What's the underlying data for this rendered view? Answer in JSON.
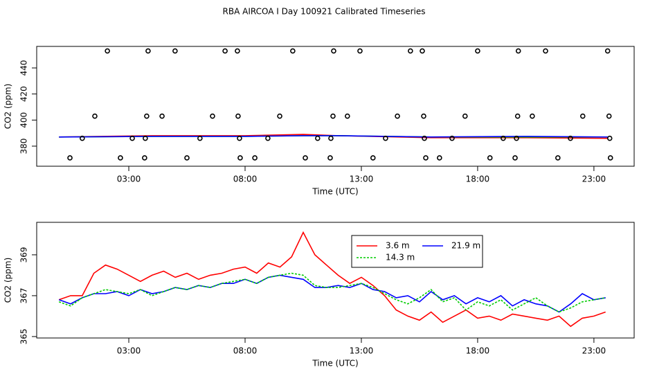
{
  "title": "RBA AIRCOA I  Day 100921  Calibrated Timeseries",
  "chart_data": [
    {
      "type": "line",
      "xlabel": "Time (UTC)",
      "ylabel": "CO2 (ppm)",
      "xlim": [
        -0.96,
        24.73
      ],
      "ylim": [
        364.6,
        456.5
      ],
      "xticks": [
        {
          "value": 3,
          "label": "03:00"
        },
        {
          "value": 8,
          "label": "08:00"
        },
        {
          "value": 13,
          "label": "13:00"
        },
        {
          "value": 18,
          "label": "18:00"
        },
        {
          "value": 23,
          "label": "23:00"
        }
      ],
      "yticks": [
        380,
        400,
        420,
        440
      ],
      "series": [
        {
          "type": "line",
          "color": "#ff0000",
          "x": [
            0,
            4,
            8,
            10.5,
            12,
            16,
            20,
            23.6
          ],
          "values": [
            387,
            388,
            388,
            389,
            388,
            386.5,
            386.5,
            386
          ]
        },
        {
          "type": "line",
          "color": "#00cc00",
          "x": [
            0,
            4,
            8,
            10.5,
            12,
            16,
            20,
            23.6
          ],
          "values": [
            387,
            387.5,
            387.5,
            388,
            388,
            387,
            387,
            387
          ]
        },
        {
          "type": "line",
          "color": "#0000ff",
          "x": [
            0,
            4,
            8,
            10.5,
            12,
            16,
            20,
            23.6
          ],
          "values": [
            387,
            387.5,
            387.5,
            388,
            388,
            387,
            387.5,
            387
          ]
        },
        {
          "type": "scatter",
          "color": "#000000",
          "x": [
            2.08,
            3.83,
            4.99,
            7.14,
            7.67,
            10.05,
            11.81,
            12.94,
            15.11,
            15.62,
            18.0,
            19.75,
            20.92,
            23.59,
            1.54,
            3.77,
            4.43,
            6.6,
            7.7,
            9.49,
            11.78,
            12.4,
            14.55,
            15.68,
            17.46,
            19.72,
            20.35,
            22.52,
            23.65,
            1.0,
            3.15,
            3.71,
            6.06,
            7.76,
            8.98,
            11.12,
            11.69,
            14.04,
            15.71,
            16.9,
            19.1,
            19.67,
            21.99,
            23.68,
            0.47,
            2.64,
            3.68,
            5.5,
            7.79,
            8.42,
            10.59,
            11.66,
            13.5,
            15.77,
            16.36,
            18.53,
            19.61,
            21.45,
            23.71
          ],
          "values": [
            453,
            453,
            453,
            453,
            453,
            453,
            453,
            453,
            453,
            453,
            453,
            453,
            453,
            453,
            403,
            403,
            403,
            403,
            403,
            403,
            403,
            403,
            403,
            403,
            403,
            403,
            403,
            403,
            403,
            386,
            386,
            386,
            386,
            386,
            386,
            386,
            386,
            386,
            386,
            386,
            386,
            386,
            386,
            386,
            371,
            371,
            371,
            371,
            371,
            371,
            371,
            371,
            371,
            371,
            371,
            371,
            371,
            371,
            371
          ]
        }
      ]
    },
    {
      "type": "line",
      "xlabel": "Time (UTC)",
      "ylabel": "CO2 (ppm)",
      "xlim": [
        -0.96,
        24.73
      ],
      "ylim": [
        364.93,
        370.59
      ],
      "xticks": [
        {
          "value": 3,
          "label": "03:00"
        },
        {
          "value": 8,
          "label": "08:00"
        },
        {
          "value": 13,
          "label": "13:00"
        },
        {
          "value": 18,
          "label": "18:00"
        },
        {
          "value": 23,
          "label": "23:00"
        }
      ],
      "yticks": [
        365,
        367,
        369
      ],
      "legend": "top",
      "x": [
        0,
        0.5,
        1,
        1.5,
        2,
        2.5,
        3,
        3.5,
        4,
        4.5,
        5,
        5.5,
        6,
        6.5,
        7,
        7.5,
        8,
        8.5,
        9,
        9.5,
        10,
        10.5,
        11,
        11.5,
        12,
        12.5,
        13,
        13.5,
        14,
        14.5,
        15,
        15.5,
        16,
        16.5,
        17,
        17.5,
        18,
        18.5,
        19,
        19.5,
        20,
        20.5,
        21,
        21.5,
        22,
        22.5,
        23,
        23.5
      ],
      "series": [
        {
          "name": "3.6 m",
          "color": "#ff0000",
          "linestyle": "solid",
          "values": [
            366.8,
            367,
            367,
            368.1,
            368.5,
            368.3,
            368,
            367.7,
            368,
            368.2,
            367.9,
            368.1,
            367.8,
            368,
            368.1,
            368.3,
            368.4,
            368.1,
            368.6,
            368.4,
            368.9,
            370.1,
            369,
            368.5,
            368,
            367.6,
            367.9,
            367.5,
            367,
            366.3,
            366,
            365.8,
            366.2,
            365.7,
            366,
            366.3,
            365.9,
            366,
            365.8,
            366.1,
            366,
            365.9,
            365.8,
            366,
            365.5,
            365.9,
            366,
            366.2
          ]
        },
        {
          "name": "21.9 m",
          "color": "#0000ff",
          "linestyle": "solid",
          "values": [
            366.8,
            366.6,
            366.9,
            367.1,
            367.1,
            367.2,
            367.0,
            367.3,
            367.1,
            367.2,
            367.4,
            367.3,
            367.5,
            367.4,
            367.6,
            367.6,
            367.8,
            367.6,
            367.9,
            368,
            367.9,
            367.8,
            367.4,
            367.4,
            367.5,
            367.4,
            367.6,
            367.3,
            367.2,
            366.9,
            367.0,
            366.7,
            367.2,
            366.8,
            367.0,
            366.6,
            366.9,
            366.7,
            367.0,
            366.5,
            366.8,
            366.6,
            366.5,
            366.2,
            366.6,
            367.1,
            366.8,
            366.9
          ]
        },
        {
          "name": "14.3 m",
          "color": "#00cc00",
          "linestyle": "dotted",
          "values": [
            366.7,
            366.5,
            366.9,
            367.1,
            367.3,
            367.2,
            367.1,
            367.3,
            367,
            367.2,
            367.4,
            367.3,
            367.5,
            367.4,
            367.6,
            367.7,
            367.8,
            367.6,
            367.9,
            368,
            368.1,
            368,
            367.5,
            367.4,
            367.4,
            367.5,
            367.6,
            367.4,
            367.1,
            366.8,
            366.6,
            366.9,
            367.3,
            366.7,
            366.9,
            366.3,
            366.7,
            366.5,
            366.8,
            366.3,
            366.6,
            366.9,
            366.5,
            366.2,
            366.4,
            366.7,
            366.8,
            366.9
          ]
        }
      ]
    }
  ]
}
